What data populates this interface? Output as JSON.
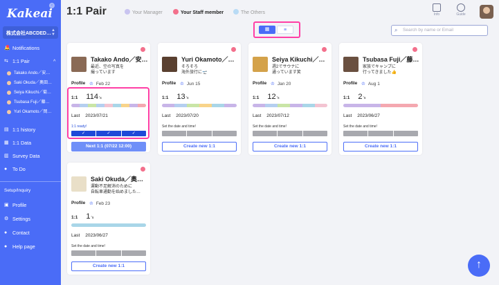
{
  "app": {
    "logo": "Kakeai",
    "page_title": "1:1 Pair"
  },
  "sidebar": {
    "company": "株式会社ABCDED…",
    "items": [
      {
        "label": "Notifications",
        "icon": "bell-icon"
      },
      {
        "label": "1:1 Pair",
        "icon": "pair-icon"
      },
      {
        "label": "1:1 history",
        "icon": "history-icon"
      },
      {
        "label": "1:1 Data",
        "icon": "data-icon"
      },
      {
        "label": "Survey Data",
        "icon": "survey-icon"
      },
      {
        "label": "To Do",
        "icon": "todo-icon"
      }
    ],
    "pair_members": [
      "Takako Ando／安…",
      "Saki Okuda／奥田…",
      "Seiya Kikuchi／菊…",
      "Tsubasa Fuji／藤…",
      "Yuri Okamoto／岡…"
    ],
    "section_label": "Setup/Inquiry",
    "setup_items": [
      {
        "label": "Profile",
        "icon": "profile-icon"
      },
      {
        "label": "Settings",
        "icon": "gear-icon"
      },
      {
        "label": "Contact",
        "icon": "contact-icon"
      },
      {
        "label": "Help page",
        "icon": "help-icon"
      }
    ]
  },
  "header": {
    "tabs": [
      {
        "label": "Your Manager",
        "color": "#c9c4f0"
      },
      {
        "label": "Your Staff member",
        "color": "#f3708c"
      },
      {
        "label": "The Others",
        "color": "#b9dbf5"
      }
    ],
    "info_label": "Info",
    "guide_label": "Guide",
    "search_placeholder": "Search by name or Email"
  },
  "cards": [
    {
      "name": "Takako Ando／安…",
      "msg": "最近、空の写真を\n撮っています",
      "profile": "Profile",
      "date": "Feb 22",
      "count_label": "1:1",
      "count": "114",
      "unit": "'s",
      "last_label": "Last",
      "last": "2023/07/21",
      "note": "1:1 ready!",
      "button": "Next 1:1 (07/22 12:00)",
      "done": true
    },
    {
      "name": "Yuri Okamoto／…",
      "msg": "そろそろ\n海外旅行に🛫",
      "profile": "Profile",
      "date": "Jun 15",
      "count_label": "1:1",
      "count": "13",
      "unit": "'s",
      "last_label": "Last",
      "last": "2023/07/20",
      "note": "Set the date and time!",
      "button": "Create new 1:1",
      "done": false
    },
    {
      "name": "Seiya Kikuchi／…",
      "msg": "週2でサウナに\n通っています笑",
      "profile": "Profile",
      "date": "Jan 20",
      "count_label": "1:1",
      "count": "12",
      "unit": "'s",
      "last_label": "Last",
      "last": "2023/07/12",
      "note": "Set the date and time!",
      "button": "Create new 1:1",
      "done": false
    },
    {
      "name": "Tsubasa Fuji／藤…",
      "msg": "家族でキャンプに\n行ってきました👍",
      "profile": "Profile",
      "date": "Aug 1",
      "count_label": "1:1",
      "count": "2",
      "unit": "'s",
      "last_label": "Last",
      "last": "2023/06/27",
      "note": "Set the date and time!",
      "button": "Create new 1:1",
      "done": false
    },
    {
      "name": "Saki Okuda／奥…",
      "msg": "運動不足解消のために\n自転車通勤を始めました…",
      "profile": "Profile",
      "date": "Feb 23",
      "count_label": "1:1",
      "count": "1",
      "unit": "'s",
      "last_label": "Last",
      "last": "2023/06/27",
      "note": "Set the date and time!",
      "button": "Create new 1:1",
      "done": false
    }
  ]
}
